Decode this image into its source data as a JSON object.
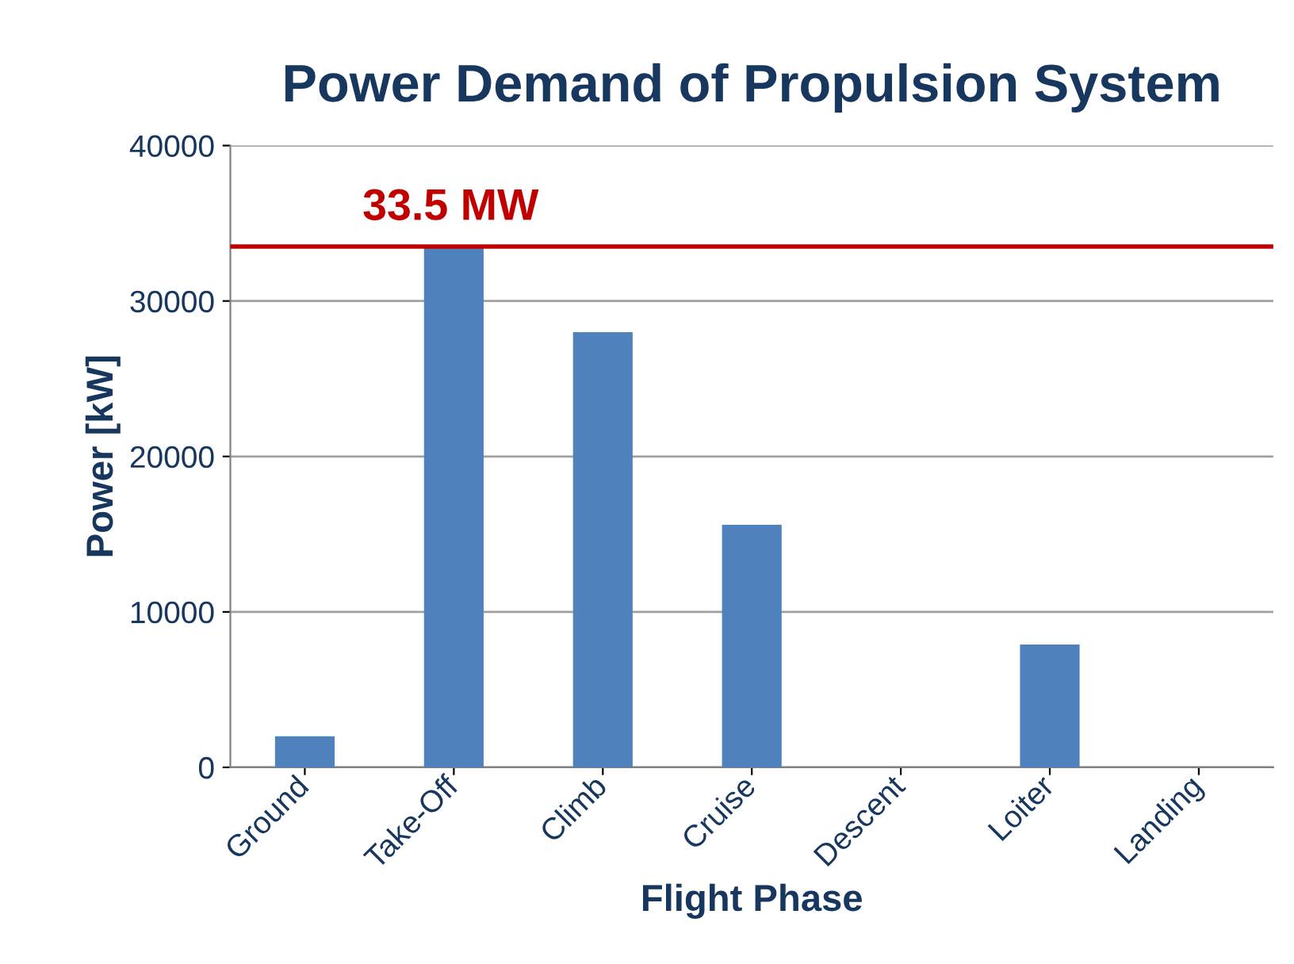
{
  "chart_data": {
    "type": "bar",
    "title": "Power Demand of Propulsion System",
    "xlabel": "Flight Phase",
    "ylabel": "Power [kW]",
    "categories": [
      "Ground",
      "Take-Off",
      "Climb",
      "Cruise",
      "Descent",
      "Loiter",
      "Landing"
    ],
    "values": [
      2000,
      33500,
      28000,
      15600,
      0,
      7900,
      0
    ],
    "color": "#4f81bd",
    "ylim": [
      0,
      40000
    ],
    "yticks": [
      0,
      10000,
      20000,
      30000,
      40000
    ],
    "grid": "y",
    "ref_lines": [
      {
        "axis": "y",
        "value": 33500,
        "label": "33.5 MW",
        "color": "#c00000"
      }
    ]
  }
}
